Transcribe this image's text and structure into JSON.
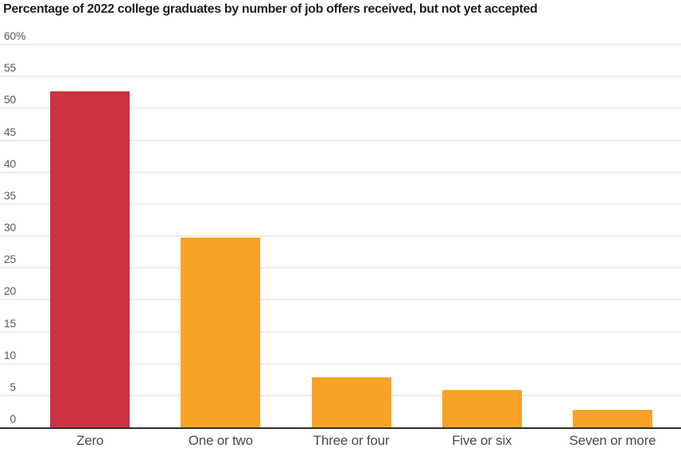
{
  "chart_data": {
    "type": "bar",
    "title": "Percentage of 2022 college graduates by number of job offers received, but not yet accepted",
    "xlabel": "",
    "ylabel": "",
    "categories": [
      "Zero",
      "One or two",
      "Three or four",
      "Five or six",
      "Seven or more"
    ],
    "values": [
      52.7,
      29.8,
      7.8,
      5.8,
      2.7
    ],
    "bar_colors": [
      "#cc333e",
      "#f9a226",
      "#f9a226",
      "#f9a226",
      "#f9a226"
    ],
    "ylim": [
      0,
      60
    ],
    "ytick_step": 5,
    "ytick_top_suffix": "%",
    "grid": true,
    "legend_position": "none",
    "colors": {
      "title": "#1f1f1f",
      "grid": "#ececec",
      "axis": "#2e2e2e",
      "tick_label": "#5a5a5a",
      "category_label": "#4a4a4a",
      "background": "#ffffff"
    }
  }
}
